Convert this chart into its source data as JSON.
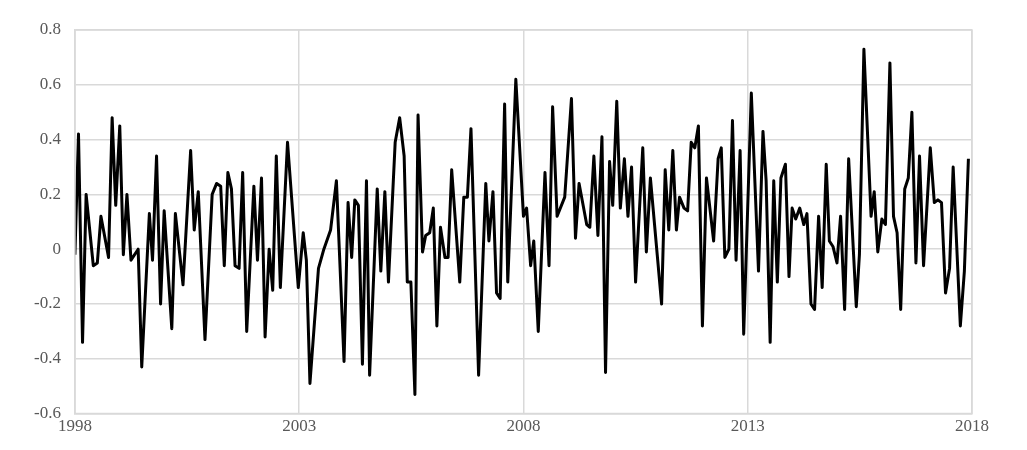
{
  "chart_data": {
    "type": "line",
    "x": [
      1998.0,
      1998.08,
      1998.17,
      1998.25,
      1998.41,
      1998.5,
      1998.58,
      1998.75,
      1998.83,
      1998.91,
      1999.0,
      1999.08,
      1999.16,
      1999.25,
      1999.41,
      1999.49,
      1999.66,
      1999.73,
      1999.82,
      1999.91,
      1999.99,
      2000.16,
      2000.24,
      2000.41,
      2000.58,
      2000.66,
      2000.75,
      2000.9,
      2001.06,
      2001.16,
      2001.25,
      2001.33,
      2001.41,
      2001.49,
      2001.57,
      2001.66,
      2001.74,
      2001.83,
      2001.99,
      2002.07,
      2002.16,
      2002.24,
      2002.33,
      2002.41,
      2002.49,
      2002.58,
      2002.74,
      2002.98,
      2003.09,
      2003.16,
      2003.24,
      2003.43,
      2003.55,
      2003.7,
      2003.83,
      2004.0,
      2004.09,
      2004.17,
      2004.24,
      2004.32,
      2004.41,
      2004.5,
      2004.57,
      2004.74,
      2004.82,
      2004.91,
      2004.99,
      2005.14,
      2005.24,
      2005.34,
      2005.41,
      2005.49,
      2005.58,
      2005.65,
      2005.75,
      2005.82,
      2005.91,
      2005.99,
      2006.07,
      2006.15,
      2006.25,
      2006.32,
      2006.4,
      2006.58,
      2006.67,
      2006.75,
      2006.83,
      2007.0,
      2007.16,
      2007.23,
      2007.32,
      2007.4,
      2007.48,
      2007.58,
      2007.65,
      2007.83,
      2008.0,
      2008.07,
      2008.16,
      2008.23,
      2008.33,
      2008.48,
      2008.57,
      2008.65,
      2008.75,
      2008.92,
      2009.07,
      2009.16,
      2009.24,
      2009.41,
      2009.48,
      2009.57,
      2009.66,
      2009.75,
      2009.83,
      2009.92,
      2009.99,
      2010.08,
      2010.16,
      2010.25,
      2010.33,
      2010.41,
      2010.5,
      2010.66,
      2010.74,
      2010.83,
      2011.08,
      2011.16,
      2011.24,
      2011.33,
      2011.41,
      2011.48,
      2011.58,
      2011.66,
      2011.74,
      2011.82,
      2011.9,
      2011.99,
      2012.08,
      2012.24,
      2012.34,
      2012.41,
      2012.49,
      2012.58,
      2012.66,
      2012.74,
      2012.83,
      2012.91,
      2013.08,
      2013.24,
      2013.34,
      2013.41,
      2013.5,
      2013.58,
      2013.66,
      2013.74,
      2013.84,
      2013.92,
      2013.99,
      2014.07,
      2014.16,
      2014.25,
      2014.32,
      2014.41,
      2014.49,
      2014.58,
      2014.66,
      2014.75,
      2014.82,
      2014.9,
      2014.99,
      2015.07,
      2015.16,
      2015.25,
      2015.42,
      2015.49,
      2015.59,
      2015.75,
      2015.82,
      2015.9,
      2015.99,
      2016.07,
      2016.17,
      2016.25,
      2016.33,
      2016.41,
      2016.5,
      2016.58,
      2016.66,
      2016.75,
      2016.83,
      2016.92,
      2017.07,
      2017.16,
      2017.24,
      2017.32,
      2017.41,
      2017.5,
      2017.58,
      2017.74,
      2017.83,
      2017.92
    ],
    "series": [
      {
        "color": "#000000",
        "values": [
          -0.02,
          0.42,
          -0.34,
          0.2,
          -0.06,
          -0.05,
          0.12,
          -0.03,
          0.48,
          0.16,
          0.45,
          -0.02,
          0.2,
          -0.04,
          0.0,
          -0.43,
          0.13,
          -0.04,
          0.34,
          -0.2,
          0.14,
          -0.29,
          0.13,
          -0.13,
          0.36,
          0.07,
          0.21,
          -0.33,
          0.2,
          0.24,
          0.23,
          -0.06,
          0.28,
          0.22,
          -0.06,
          -0.07,
          0.28,
          -0.3,
          0.23,
          -0.04,
          0.26,
          -0.32,
          0.0,
          -0.15,
          0.34,
          -0.14,
          0.39,
          -0.14,
          0.06,
          -0.04,
          -0.49,
          -0.07,
          0.0,
          0.07,
          0.25,
          -0.41,
          0.17,
          -0.03,
          0.18,
          0.16,
          -0.42,
          0.25,
          -0.46,
          0.22,
          -0.08,
          0.21,
          -0.12,
          0.39,
          0.48,
          0.34,
          -0.12,
          -0.12,
          -0.53,
          0.49,
          -0.01,
          0.05,
          0.06,
          0.15,
          -0.28,
          0.08,
          -0.03,
          -0.03,
          0.29,
          -0.12,
          0.19,
          0.19,
          0.44,
          -0.46,
          0.24,
          0.03,
          0.21,
          -0.16,
          -0.18,
          0.53,
          -0.12,
          0.62,
          0.12,
          0.15,
          -0.06,
          0.03,
          -0.3,
          0.28,
          -0.06,
          0.52,
          0.12,
          0.19,
          0.55,
          0.04,
          0.24,
          0.09,
          0.08,
          0.34,
          0.05,
          0.41,
          -0.45,
          0.32,
          0.16,
          0.54,
          0.15,
          0.33,
          0.12,
          0.3,
          -0.12,
          0.37,
          -0.01,
          0.26,
          -0.2,
          0.29,
          0.07,
          0.36,
          0.07,
          0.19,
          0.15,
          0.14,
          0.39,
          0.37,
          0.45,
          -0.28,
          0.26,
          0.03,
          0.33,
          0.37,
          -0.03,
          0.0,
          0.47,
          -0.04,
          0.36,
          -0.31,
          0.57,
          -0.08,
          0.43,
          0.25,
          -0.34,
          0.25,
          -0.12,
          0.26,
          0.31,
          -0.1,
          0.15,
          0.11,
          0.15,
          0.09,
          0.13,
          -0.2,
          -0.22,
          0.12,
          -0.14,
          0.31,
          0.03,
          0.01,
          -0.05,
          0.12,
          -0.22,
          0.33,
          -0.21,
          -0.02,
          0.73,
          0.12,
          0.21,
          -0.01,
          0.11,
          0.09,
          0.68,
          0.12,
          0.06,
          -0.22,
          0.22,
          0.26,
          0.5,
          -0.05,
          0.34,
          -0.06,
          0.37,
          0.17,
          0.18,
          0.17,
          -0.16,
          -0.07,
          0.3,
          -0.28,
          -0.08,
          0.33
        ]
      }
    ],
    "xlim": [
      1998,
      2018
    ],
    "xticks": [
      1998,
      2003,
      2008,
      2013,
      2018
    ],
    "ylim": [
      -0.6,
      0.8
    ],
    "yticks": [
      -0.6,
      -0.4,
      -0.2,
      0,
      0.2,
      0.4,
      0.6,
      0.8
    ],
    "grid": true,
    "legend": false,
    "marker": "none",
    "line_style": "solid"
  }
}
